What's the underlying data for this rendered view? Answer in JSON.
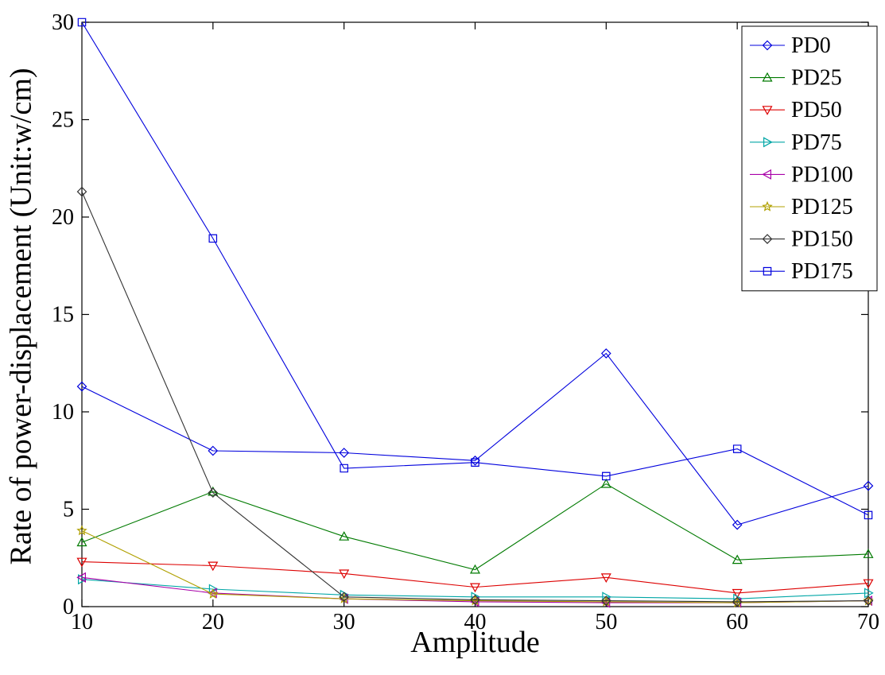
{
  "chart_data": {
    "type": "line",
    "title": "",
    "xlabel": "Amplitude",
    "ylabel": "Rate of power-displacement (Unit:w/cm)",
    "x": [
      10,
      20,
      30,
      40,
      50,
      60,
      70
    ],
    "xlim": [
      10,
      70
    ],
    "ylim": [
      0,
      30
    ],
    "xticks": [
      10,
      20,
      30,
      40,
      50,
      60,
      70
    ],
    "yticks": [
      0,
      5,
      10,
      15,
      20,
      25,
      30
    ],
    "grid": false,
    "legend_position": "top-right",
    "series": [
      {
        "name": "PD0",
        "color": "#0000dd",
        "marker": "diamond",
        "values": [
          11.3,
          8.0,
          7.9,
          7.5,
          13.0,
          4.2,
          6.2
        ]
      },
      {
        "name": "PD25",
        "color": "#007a00",
        "marker": "triangle-up",
        "values": [
          3.3,
          5.9,
          3.6,
          1.9,
          6.3,
          2.4,
          2.7
        ]
      },
      {
        "name": "PD50",
        "color": "#dd0000",
        "marker": "triangle-down",
        "values": [
          2.3,
          2.1,
          1.7,
          1.0,
          1.5,
          0.7,
          1.2
        ]
      },
      {
        "name": "PD75",
        "color": "#00a6a6",
        "marker": "triangle-right",
        "values": [
          1.4,
          0.9,
          0.6,
          0.5,
          0.5,
          0.4,
          0.7
        ]
      },
      {
        "name": "PD100",
        "color": "#a800a8",
        "marker": "triangle-left",
        "values": [
          1.5,
          0.7,
          0.4,
          0.25,
          0.2,
          0.2,
          0.3
        ]
      },
      {
        "name": "PD125",
        "color": "#b0a000",
        "marker": "star",
        "values": [
          3.9,
          0.65,
          0.4,
          0.3,
          0.25,
          0.2,
          0.3
        ]
      },
      {
        "name": "PD150",
        "color": "#333333",
        "marker": "diamond",
        "values": [
          21.3,
          5.85,
          0.5,
          0.35,
          0.3,
          0.25,
          0.3
        ]
      },
      {
        "name": "PD175",
        "color": "#0000dd",
        "marker": "square",
        "values": [
          30.0,
          18.9,
          7.1,
          7.4,
          6.7,
          8.1,
          4.7
        ]
      }
    ]
  }
}
